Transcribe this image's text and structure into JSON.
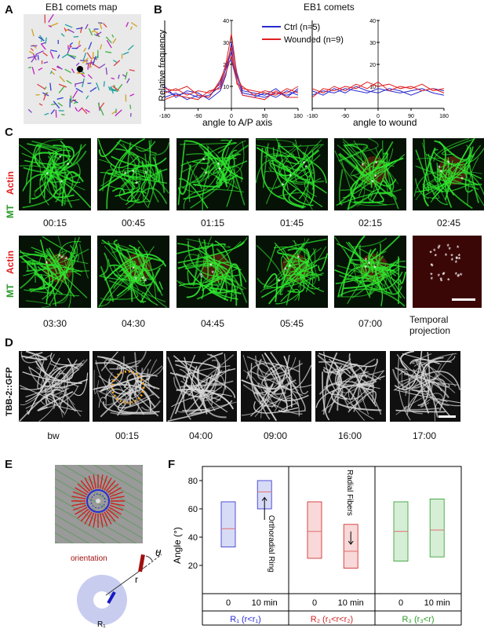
{
  "panels": {
    "A": {
      "label": "A",
      "title": "EB1 comets map"
    },
    "B": {
      "label": "B",
      "title": "EB1 comets",
      "legend": [
        {
          "name": "Ctrl (n=5)",
          "color": "#2a2ad0"
        },
        {
          "name": "Wounded (n=9)",
          "color": "#e02020"
        }
      ],
      "ylabel": "Relative frequency",
      "left_xlabel": "angle to A/P axis",
      "right_xlabel": "angle to wound",
      "x_ticks": [
        "-180",
        "-90",
        "0",
        "90",
        "180"
      ],
      "y_ticks": [
        "10",
        "20",
        "30",
        "40"
      ]
    },
    "C": {
      "label": "C",
      "row_label_top": "Actin",
      "row_label_bottom": "MT",
      "times_row1": [
        "00:15",
        "00:45",
        "01:15",
        "01:45",
        "02:15",
        "02:45"
      ],
      "times_row2": [
        "03:30",
        "04:30",
        "04:45",
        "05:45",
        "07:00"
      ],
      "projection_caption_1": "Temporal",
      "projection_caption_2": "projection"
    },
    "D": {
      "label": "D",
      "row_label": "TBB-2::GFP",
      "times": [
        "bw",
        "00:15",
        "04:00",
        "09:00",
        "16:00",
        "17:00"
      ]
    },
    "E": {
      "label": "E",
      "orientation_label": "orientation",
      "theta": "θ",
      "r_label": "r",
      "ring_label": "R₁"
    },
    "F": {
      "label": "F",
      "ylabel": "Angle (°)",
      "y_ticks": [
        "20",
        "40",
        "60",
        "80"
      ],
      "x_ticks": [
        "0",
        "10 min"
      ],
      "orthoradial_annotation": "Orthoradial Ring",
      "radial_annotation": "Radial Fibers",
      "region_labels": [
        {
          "text": "R₁ (r<r₁)",
          "color": "#2a2ad0"
        },
        {
          "text": "R₂ (r₁<r<r₂)",
          "color": "#d02020"
        },
        {
          "text": "R₃ (r₃<r)",
          "color": "#2a9a2a"
        }
      ]
    }
  },
  "chart_data": [
    {
      "type": "line",
      "title": "EB1 comets",
      "xlabel": "angle to A/P axis",
      "ylabel": "Relative frequency",
      "xlim": [
        -180,
        180
      ],
      "ylim": [
        0,
        40
      ],
      "x": [
        -180,
        -150,
        -120,
        -90,
        -60,
        -30,
        -15,
        0,
        15,
        30,
        60,
        90,
        120,
        150,
        180
      ],
      "series": [
        {
          "name": "Ctrl (n=5)",
          "color": "#2a2ad0",
          "values": [
            8,
            6,
            7,
            5,
            6,
            10,
            18,
            26,
            14,
            7,
            6,
            5,
            7,
            6,
            8
          ]
        },
        {
          "name": "Ctrl (n=5)",
          "color": "#2a2ad0",
          "values": [
            5,
            7,
            4,
            6,
            5,
            12,
            20,
            22,
            12,
            6,
            5,
            7,
            5,
            8,
            6
          ]
        },
        {
          "name": "Ctrl (n=5)",
          "color": "#2a2ad0",
          "values": [
            10,
            5,
            8,
            7,
            4,
            8,
            15,
            30,
            16,
            8,
            7,
            6,
            9,
            5,
            9
          ]
        },
        {
          "name": "Wounded (n=9)",
          "color": "#e02020",
          "values": [
            7,
            9,
            6,
            8,
            7,
            11,
            20,
            34,
            15,
            9,
            8,
            7,
            6,
            9,
            7
          ]
        },
        {
          "name": "Wounded (n=9)",
          "color": "#e02020",
          "values": [
            4,
            6,
            5,
            4,
            8,
            9,
            16,
            24,
            12,
            6,
            5,
            4,
            8,
            5,
            5
          ]
        },
        {
          "name": "Wounded (n=9)",
          "color": "#e02020",
          "values": [
            9,
            8,
            10,
            6,
            5,
            13,
            19,
            28,
            11,
            10,
            6,
            8,
            7,
            7,
            10
          ]
        }
      ]
    },
    {
      "type": "line",
      "xlabel": "angle to wound",
      "ylabel": "",
      "xlim": [
        -180,
        180
      ],
      "ylim": [
        0,
        40
      ],
      "x": [
        -180,
        -150,
        -120,
        -90,
        -60,
        -30,
        0,
        30,
        60,
        90,
        120,
        150,
        180
      ],
      "series": [
        {
          "name": "Ctrl (n=5)",
          "color": "#2a2ad0",
          "values": [
            6,
            8,
            7,
            9,
            8,
            7,
            9,
            8,
            7,
            8,
            9,
            7,
            6
          ]
        },
        {
          "name": "Ctrl (n=5)",
          "color": "#2a2ad0",
          "values": [
            8,
            6,
            9,
            7,
            10,
            8,
            7,
            9,
            8,
            6,
            8,
            9,
            8
          ]
        },
        {
          "name": "Wounded (n=9)",
          "color": "#e02020",
          "values": [
            5,
            9,
            8,
            10,
            9,
            12,
            10,
            11,
            9,
            10,
            8,
            9,
            7
          ]
        },
        {
          "name": "Wounded (n=9)",
          "color": "#e02020",
          "values": [
            9,
            7,
            10,
            8,
            11,
            9,
            12,
            8,
            10,
            9,
            11,
            8,
            9
          ]
        }
      ]
    },
    {
      "type": "box",
      "ylabel": "Angle (°)",
      "ylim": [
        0,
        90
      ],
      "groups": [
        {
          "region": "R₁ (r<r₁)",
          "time": "0",
          "color": "#2a2ad0",
          "q1": 33,
          "median": 46,
          "q3": 65
        },
        {
          "region": "R₁ (r<r₁)",
          "time": "10 min",
          "color": "#2a2ad0",
          "q1": 60,
          "median": 72,
          "q3": 80
        },
        {
          "region": "R₂ (r₁<r<r₂)",
          "time": "0",
          "color": "#d02020",
          "q1": 25,
          "median": 44,
          "q3": 65
        },
        {
          "region": "R₂ (r₁<r<r₂)",
          "time": "10 min",
          "color": "#d02020",
          "q1": 18,
          "median": 30,
          "q3": 49
        },
        {
          "region": "R₃ (r₃<r)",
          "time": "0",
          "color": "#2a9a2a",
          "q1": 23,
          "median": 44,
          "q3": 65
        },
        {
          "region": "R₃ (r₃<r)",
          "time": "10 min",
          "color": "#2a9a2a",
          "q1": 26,
          "median": 45,
          "q3": 67
        }
      ]
    }
  ]
}
